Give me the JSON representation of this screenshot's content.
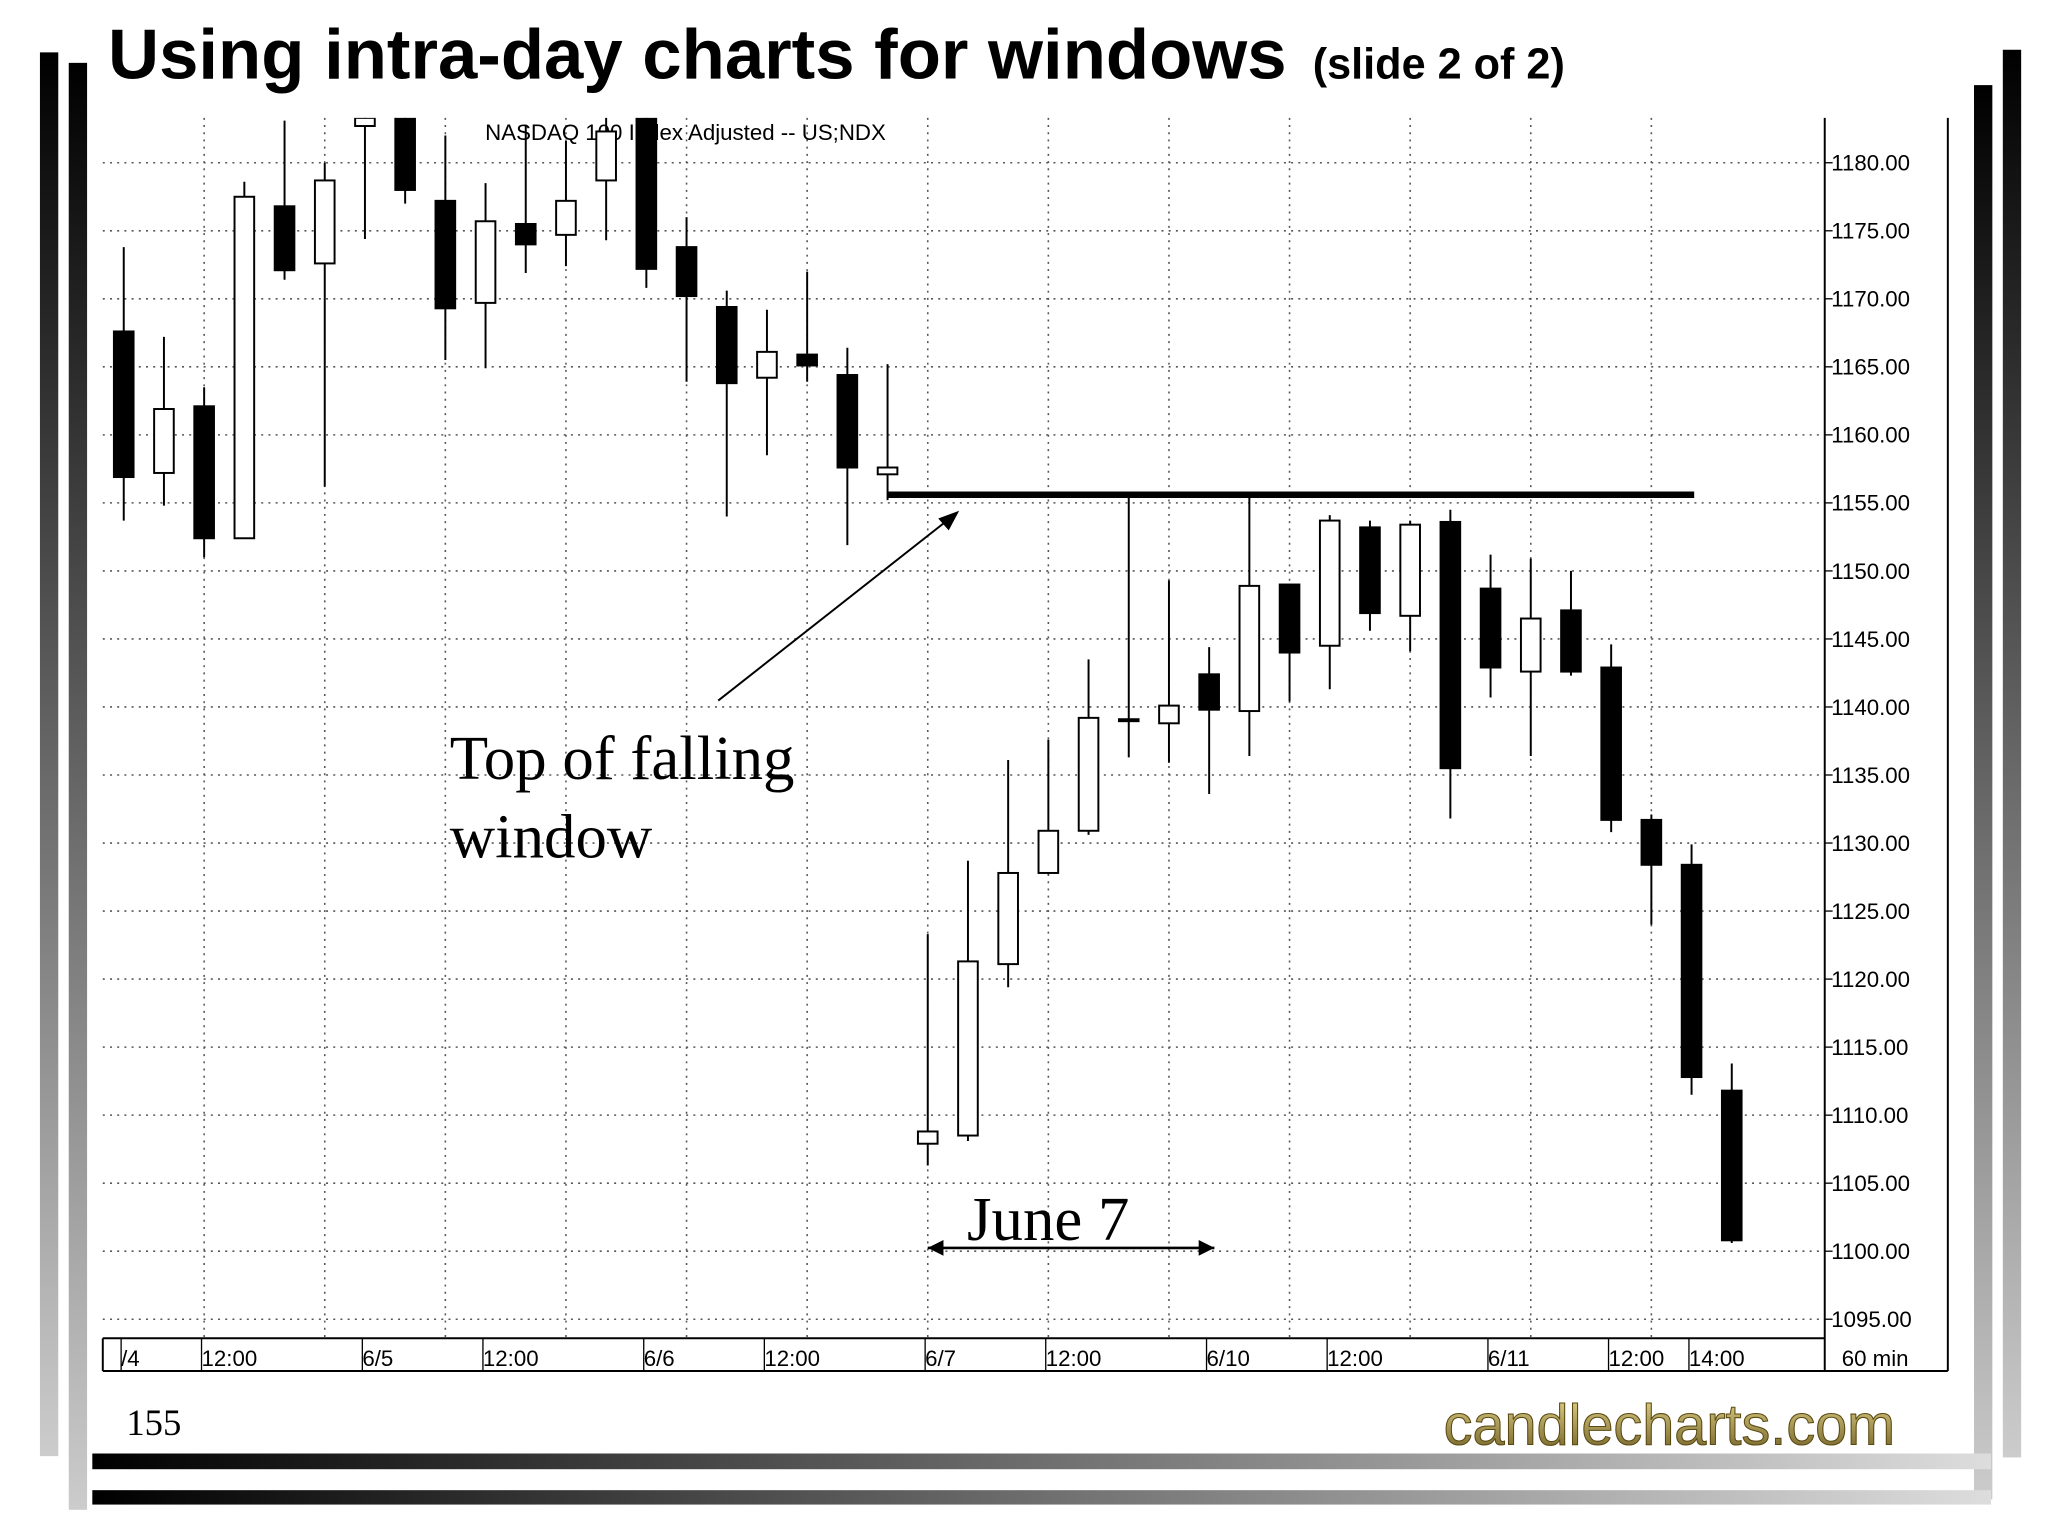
{
  "title": "Using intra-day charts for windows",
  "title_suffix": "(slide 2 of 2)",
  "slide_number": "155",
  "logo": "candlecharts.com",
  "chart_data": {
    "type": "candlestick",
    "chart_label": "NASDAQ 100 Index Adjusted -- US;NDX",
    "categories": [
      "/4",
      null,
      "12:00",
      null,
      null,
      null,
      "6/5",
      null,
      null,
      "12:00",
      null,
      null,
      null,
      "6/6",
      null,
      null,
      "12:00",
      null,
      null,
      null,
      "6/7",
      null,
      null,
      "12:00",
      null,
      null,
      null,
      "6/10",
      null,
      null,
      "12:00",
      null,
      null,
      null,
      "6/11",
      null,
      null,
      "12:00",
      null,
      "14:00",
      null
    ],
    "open": [
      1167.6,
      1157.2,
      1162.1,
      1152.4,
      1176.8,
      1172.6,
      1182.7,
      1184.0,
      1177.2,
      1169.7,
      1175.5,
      1174.7,
      1178.7,
      1183.5,
      1173.8,
      1169.4,
      1164.2,
      1165.9,
      1164.4,
      1157.1,
      1107.9,
      1108.5,
      1121.1,
      1127.8,
      1130.9,
      1139.1,
      1138.8,
      1142.4,
      1139.7,
      1149.0,
      1144.5,
      1153.2,
      1146.7,
      1153.6,
      1148.7,
      1142.6,
      1147.1,
      1142.9,
      1131.7,
      1128.4,
      1111.8
    ],
    "high": [
      1173.8,
      1167.2,
      1163.5,
      1178.6,
      1183.1,
      1180.0,
      1185.0,
      1186.0,
      1182.0,
      1178.5,
      1182.8,
      1181.6,
      1183.5,
      1185.0,
      1176.0,
      1170.6,
      1169.2,
      1172.0,
      1166.4,
      1165.2,
      1123.3,
      1128.7,
      1136.1,
      1137.6,
      1143.5,
      1155.8,
      1149.3,
      1144.4,
      1155.4,
      1149.0,
      1154.1,
      1153.7,
      1153.7,
      1154.5,
      1151.2,
      1150.9,
      1150.0,
      1144.6,
      1132.1,
      1129.9,
      1113.8
    ],
    "low": [
      1153.7,
      1154.8,
      1151.0,
      1152.4,
      1171.4,
      1156.2,
      1174.4,
      1177.0,
      1165.5,
      1164.9,
      1171.9,
      1172.4,
      1174.3,
      1170.8,
      1163.9,
      1154.0,
      1158.5,
      1163.9,
      1151.9,
      1155.2,
      1106.3,
      1108.1,
      1119.4,
      1127.7,
      1130.6,
      1136.3,
      1135.9,
      1133.6,
      1136.4,
      1140.4,
      1141.3,
      1145.6,
      1144.1,
      1131.8,
      1140.7,
      1136.4,
      1142.3,
      1130.8,
      1124.0,
      1111.5,
      1100.6
    ],
    "close": [
      1156.9,
      1161.9,
      1152.4,
      1177.5,
      1172.1,
      1178.7,
      1183.3,
      1178.0,
      1169.3,
      1175.7,
      1174.0,
      1177.2,
      1182.3,
      1172.2,
      1170.2,
      1163.8,
      1166.1,
      1165.1,
      1157.6,
      1157.6,
      1108.8,
      1121.3,
      1127.8,
      1130.9,
      1139.2,
      1139.1,
      1140.1,
      1139.8,
      1148.9,
      1144.0,
      1153.7,
      1146.9,
      1153.4,
      1135.5,
      1142.9,
      1146.5,
      1142.6,
      1131.7,
      1128.4,
      1112.8,
      1100.8
    ],
    "ylim": [
      1093.6,
      1183.3
    ],
    "yticks": [
      {
        "value": 1095,
        "label": "1095.00"
      },
      {
        "value": 1100,
        "label": "1100.00"
      },
      {
        "value": 1105,
        "label": "1105.00"
      },
      {
        "value": 1110,
        "label": "1110.00"
      },
      {
        "value": 1115,
        "label": "1115.00"
      },
      {
        "value": 1120,
        "label": "1120.00"
      },
      {
        "value": 1125,
        "label": "1125.00"
      },
      {
        "value": 1130,
        "label": "1130.00"
      },
      {
        "value": 1135,
        "label": "1135.00"
      },
      {
        "value": 1140,
        "label": "1140.00"
      },
      {
        "value": 1145,
        "label": "1145.00"
      },
      {
        "value": 1150,
        "label": "1150.00"
      },
      {
        "value": 1155,
        "label": "1155.00"
      },
      {
        "value": 1160,
        "label": "1160.00"
      },
      {
        "value": 1165,
        "label": "1165.00"
      },
      {
        "value": 1170,
        "label": "1170.00"
      },
      {
        "value": 1175,
        "label": "1175.00"
      },
      {
        "value": 1180,
        "label": "1180.00"
      }
    ],
    "grid": true,
    "x_unit": "60 min",
    "reference_line": 1155.6,
    "annotations": [
      [
        "Top of falling",
        "window"
      ],
      "June 7"
    ]
  }
}
